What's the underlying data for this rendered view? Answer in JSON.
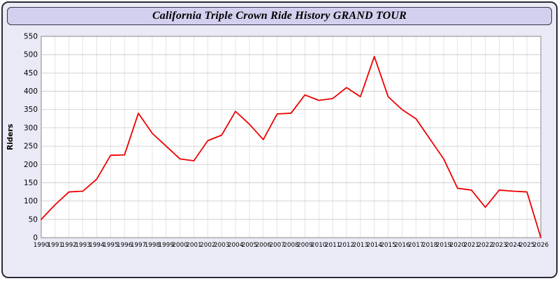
{
  "window": {
    "title": "California Triple Crown Ride History GRAND TOUR"
  },
  "colors": {
    "page_background": "#eaeaf6",
    "title_bar_background": "#d3cfee",
    "title_bar_border": "#33334d",
    "outer_border": "#2a2a3a",
    "plot_background": "#ffffff",
    "grid_major": "#c8c8c8",
    "grid_vertical": "#d8d8d8",
    "axis_border": "#888888",
    "line_color": "#ee0000",
    "tick_text": "#000000"
  },
  "chart_data": {
    "type": "line",
    "title": "California Triple Crown Ride History GRAND TOUR",
    "xlabel": "",
    "ylabel": "Riders",
    "ylim": [
      0,
      550
    ],
    "ytick_step": 50,
    "yticks": [
      0,
      50,
      100,
      150,
      200,
      250,
      300,
      350,
      400,
      450,
      500,
      550
    ],
    "grid": true,
    "legend_position": "none",
    "x": [
      1990,
      1991,
      1992,
      1993,
      1994,
      1995,
      1996,
      1997,
      1998,
      1999,
      2000,
      2001,
      2002,
      2003,
      2004,
      2005,
      2006,
      2007,
      2008,
      2009,
      2010,
      2011,
      2012,
      2013,
      2014,
      2015,
      2016,
      2017,
      2018,
      2019,
      2020,
      2021,
      2022,
      2023,
      2024,
      2025,
      2026
    ],
    "series": [
      {
        "name": "Riders",
        "color": "#ee0000",
        "values": [
          50,
          90,
          125,
          127,
          160,
          225,
          226,
          340,
          285,
          250,
          215,
          210,
          265,
          280,
          345,
          310,
          268,
          338,
          340,
          390,
          375,
          380,
          410,
          385,
          495,
          385,
          350,
          325,
          270,
          215,
          135,
          130,
          83,
          130,
          127,
          125,
          0
        ]
      }
    ]
  }
}
